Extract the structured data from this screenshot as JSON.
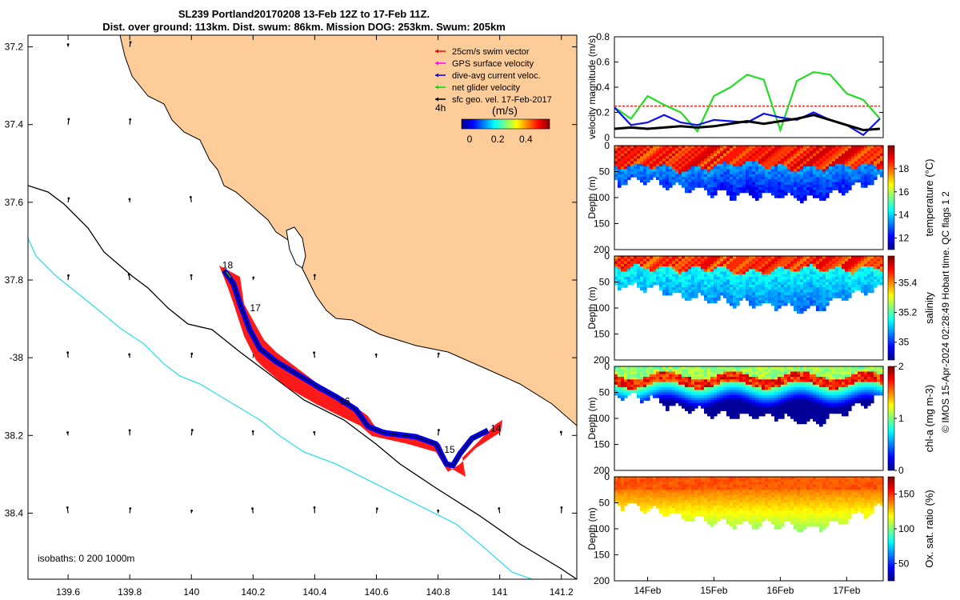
{
  "header": {
    "line1": "SL239 Portland20170208 13-Feb 12Z to 17-Feb 11Z.",
    "line2": "Dist. over ground: 113km. Dist. swum: 86km. Mission DOG: 253km. Swum: 205km"
  },
  "credit": "© IMOS 15-Apr-2024 02:28:49 Hobart time. QC flags 1  2",
  "map": {
    "lon_ticks": [
      "139.6",
      "139.8",
      "140",
      "140.2",
      "140.4",
      "140.6",
      "140.8",
      "141",
      "141.2"
    ],
    "lat_ticks": [
      "37.2",
      "37.4",
      "37.6",
      "37.8",
      "-38",
      "38.2",
      "38.4"
    ],
    "lon_range": [
      139.47,
      141.25
    ],
    "lat_range": [
      -38.57,
      -37.17
    ],
    "isobath_label": "isobaths: 0   200  1000m",
    "day_labels": [
      {
        "text": "18",
        "lon": 140.1,
        "lat": -37.77
      },
      {
        "text": "17",
        "lon": 140.19,
        "lat": -37.88
      },
      {
        "text": "16",
        "lon": 140.48,
        "lat": -38.12
      },
      {
        "text": "14",
        "lon": 140.97,
        "lat": -38.19
      },
      {
        "text": "15",
        "lon": 140.82,
        "lat": -38.245
      }
    ],
    "legend": [
      {
        "label": "25cm/s swim vector",
        "color": "#ff0000"
      },
      {
        "label": "GPS surface velocity",
        "color": "#ff00ff"
      },
      {
        "label": "dive-avg current veloc.",
        "color": "#0000ff"
      },
      {
        "label": "net glider velocity",
        "color": "#00dd00"
      },
      {
        "label": "sfc geo. vel. 17-Feb-2017",
        "color": "#000000"
      }
    ],
    "legend_extra": "4h",
    "colorbar": {
      "unit": "(m/s)",
      "ticks": [
        "0",
        "0.2",
        "0.4"
      ]
    },
    "colors": {
      "land": "#fdcc99",
      "coast": "#000000",
      "isobath_200": "#000000",
      "isobath_1000": "#33e0e8"
    }
  },
  "panels": {
    "time_ticks": [
      "14Feb",
      "15Feb",
      "16Feb",
      "17Feb"
    ],
    "velocity": {
      "ylabel": "velocity magnitude (m/s)",
      "yticks": [
        "0",
        "0.2",
        "0.4",
        "0.6",
        "0.8"
      ]
    },
    "sections": [
      {
        "name": "temperature",
        "cbar_label": "temperature (°C)",
        "cbar_ticks": [
          "12",
          "14",
          "16",
          "18"
        ],
        "ylabel": "Depth (m)"
      },
      {
        "name": "salinity",
        "cbar_label": "salinity",
        "cbar_ticks": [
          "35",
          "35.2",
          "35.4"
        ],
        "ylabel": "Depth (m)"
      },
      {
        "name": "chla",
        "cbar_label": "chl-a (mg m-3)",
        "cbar_ticks": [
          "0",
          "1",
          "2"
        ],
        "ylabel": "Depth (m)"
      },
      {
        "name": "oxygen",
        "cbar_label": "Ox. sat. ratio (%)",
        "cbar_ticks": [
          "50",
          "100",
          "150"
        ],
        "ylabel": "Depth (m)"
      }
    ],
    "depth_ticks": [
      "0",
      "50",
      "100",
      "150",
      "200"
    ]
  },
  "chart_data": [
    {
      "type": "scatter",
      "title": "SL239 Portland20170208 13-Feb 12Z to 17-Feb 11Z.",
      "xlabel": "",
      "ylabel": "",
      "xlim": [
        139.47,
        141.25
      ],
      "ylim": [
        -38.57,
        -37.17
      ],
      "series": [
        {
          "name": "track",
          "x": [
            140.1,
            140.15,
            140.2,
            140.25,
            140.35,
            140.45,
            140.55,
            140.6,
            140.72,
            140.8,
            140.84,
            140.88,
            140.95,
            141.0
          ],
          "y": [
            -37.78,
            -37.84,
            -37.92,
            -38.0,
            -38.06,
            -38.11,
            -38.16,
            -38.19,
            -38.2,
            -38.22,
            -38.28,
            -38.23,
            -38.2,
            -38.19
          ]
        }
      ],
      "grid": false
    },
    {
      "type": "line",
      "xlabel": "",
      "ylabel": "velocity magnitude (m/s)",
      "ylim": [
        0,
        0.8
      ],
      "x": [
        13.5,
        13.75,
        14.0,
        14.25,
        14.5,
        14.75,
        15.0,
        15.25,
        15.5,
        15.75,
        16.0,
        16.25,
        16.5,
        16.75,
        17.0,
        17.25,
        17.5
      ],
      "series": [
        {
          "name": "25cm/s swim vector",
          "values": [
            0.25,
            0.25,
            0.25,
            0.25,
            0.25,
            0.25,
            0.25,
            0.25,
            0.25,
            0.25,
            0.25,
            0.25,
            0.25,
            0.25,
            0.25,
            0.25,
            0.25
          ]
        },
        {
          "name": "net glider velocity",
          "values": [
            0.24,
            0.15,
            0.33,
            0.26,
            0.2,
            0.05,
            0.33,
            0.4,
            0.5,
            0.46,
            0.06,
            0.45,
            0.52,
            0.5,
            0.35,
            0.3,
            0.15
          ]
        },
        {
          "name": "dive-avg current veloc.",
          "values": [
            0.24,
            0.1,
            0.12,
            0.18,
            0.12,
            0.1,
            0.14,
            0.13,
            0.12,
            0.19,
            0.16,
            0.14,
            0.2,
            0.14,
            0.1,
            0.02,
            0.15
          ]
        },
        {
          "name": "sfc geo. vel. 17-Feb-2017",
          "values": [
            0.07,
            0.08,
            0.07,
            0.08,
            0.09,
            0.08,
            0.09,
            0.11,
            0.13,
            0.11,
            0.13,
            0.15,
            0.18,
            0.14,
            0.1,
            0.06,
            0.07
          ]
        }
      ]
    },
    {
      "type": "heatmap",
      "title": "temperature",
      "xlabel": "",
      "ylabel": "Depth (m)",
      "x": [
        13.5,
        14.0,
        14.5,
        15.0,
        15.5,
        16.0,
        16.5,
        17.0,
        17.5
      ],
      "mixed_layer_depth_m": [
        40,
        35,
        45,
        38,
        30,
        40,
        42,
        35,
        38
      ],
      "max_depth_m": [
        65,
        60,
        75,
        85,
        90,
        90,
        100,
        80,
        60
      ],
      "surface_value": 18.5,
      "deep_value": 13.5,
      "ylim": [
        200,
        0
      ],
      "clim": [
        11,
        20
      ]
    },
    {
      "type": "heatmap",
      "title": "salinity",
      "xlabel": "",
      "ylabel": "Depth (m)",
      "x": [
        13.5,
        14.0,
        14.5,
        15.0,
        15.5,
        16.0,
        16.5,
        17.0,
        17.5
      ],
      "mixed_layer_depth_m": [
        20,
        20,
        25,
        20,
        30,
        25,
        20,
        25,
        20
      ],
      "max_depth_m": [
        50,
        55,
        70,
        80,
        85,
        90,
        100,
        70,
        55
      ],
      "surface_value": 35.45,
      "deep_value": 35.15,
      "ylim": [
        200,
        0
      ],
      "clim": [
        34.88,
        35.58
      ]
    },
    {
      "type": "heatmap",
      "title": "chl-a (mg m-3)",
      "xlabel": "",
      "ylabel": "Depth (m)",
      "x": [
        13.5,
        14.0,
        14.5,
        15.0,
        15.5,
        16.0,
        16.5,
        17.0,
        17.5
      ],
      "max_depth_m": [
        50,
        55,
        75,
        85,
        90,
        90,
        105,
        80,
        55
      ],
      "surface_value": 1.0,
      "peak_value": 1.8,
      "deep_value": 0.2,
      "ylim": [
        200,
        0
      ],
      "clim": [
        0,
        2
      ]
    },
    {
      "type": "heatmap",
      "title": "Ox. sat. ratio (%)",
      "xlabel": "",
      "ylabel": "Depth (m)",
      "x": [
        13.5,
        14.0,
        14.5,
        15.0,
        15.5,
        16.0,
        16.5,
        17.0,
        17.5
      ],
      "max_depth_m": [
        45,
        55,
        70,
        80,
        85,
        85,
        95,
        75,
        55
      ],
      "surface_value": 140,
      "deep_value": 115,
      "ylim": [
        200,
        0
      ],
      "clim": [
        25,
        175
      ]
    }
  ]
}
